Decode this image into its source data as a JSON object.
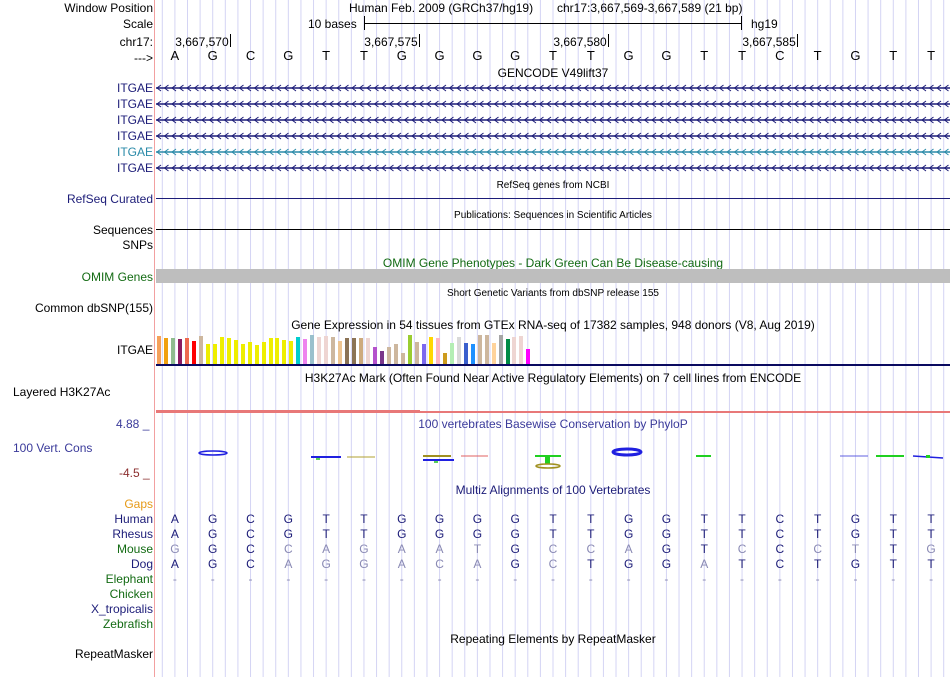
{
  "header": {
    "window_position_label": "Window Position",
    "assembly": "Human Feb. 2009 (GRCh37/hg19)",
    "position": "chr17:3,667,569-3,667,589 (21 bp)",
    "scale_label": "Scale",
    "scale_text": "10 bases",
    "scale_db": "hg19",
    "chrom_label": "chr17:",
    "ticks": [
      "3,667,570",
      "3,667,575",
      "3,667,580",
      "3,667,585"
    ],
    "strand_label": "--->"
  },
  "sequence": [
    "A",
    "G",
    "C",
    "G",
    "T",
    "T",
    "G",
    "G",
    "G",
    "G",
    "T",
    "T",
    "G",
    "G",
    "T",
    "T",
    "C",
    "T",
    "G",
    "T",
    "T"
  ],
  "gencode": {
    "title": "GENCODE V49lift37",
    "transcripts": [
      {
        "label": "ITGAE",
        "color": "#1c1c78"
      },
      {
        "label": "ITGAE",
        "color": "#1c1c78"
      },
      {
        "label": "ITGAE",
        "color": "#1c1c78"
      },
      {
        "label": "ITGAE",
        "color": "#1c1c78"
      },
      {
        "label": "ITGAE",
        "color": "#2a8aa8"
      },
      {
        "label": "ITGAE",
        "color": "#1c1c78"
      }
    ]
  },
  "refseq": {
    "title": "RefSeq genes from NCBI",
    "label": "RefSeq Curated"
  },
  "publications": {
    "title": "Publications: Sequences in Scientific Articles",
    "label": "Sequences"
  },
  "snps": {
    "label": "SNPs"
  },
  "omim": {
    "title": "OMIM Gene Phenotypes - Dark Green Can Be Disease-causing",
    "label": "OMIM Genes"
  },
  "dbsnp": {
    "title": "Short Genetic Variants from dbSNP release 155",
    "label": "Common dbSNP(155)"
  },
  "gtex": {
    "title": "Gene Expression in 54 tissues from GTEx RNA-seq of 17382 samples, 948 donors (V8, Aug 2019)",
    "label": "ITGAE",
    "bars": [
      {
        "color": "#f5a05a",
        "value": 0.95
      },
      {
        "color": "#f0a010",
        "value": 0.9
      },
      {
        "color": "#8fbc8f",
        "value": 0.88
      },
      {
        "color": "#8b1c62",
        "value": 0.85
      },
      {
        "color": "#ee6a50",
        "value": 0.88
      },
      {
        "color": "#ff0000",
        "value": 0.8
      },
      {
        "color": "#cdb79e",
        "value": 0.97
      },
      {
        "color": "#eeee00",
        "value": 0.68
      },
      {
        "color": "#eeee00",
        "value": 0.68
      },
      {
        "color": "#eeee00",
        "value": 0.92
      },
      {
        "color": "#eeee00",
        "value": 0.88
      },
      {
        "color": "#eeee00",
        "value": 0.82
      },
      {
        "color": "#eeee00",
        "value": 0.7
      },
      {
        "color": "#eeee00",
        "value": 0.77
      },
      {
        "color": "#eeee00",
        "value": 0.65
      },
      {
        "color": "#eeee00",
        "value": 0.75
      },
      {
        "color": "#eeee00",
        "value": 0.88
      },
      {
        "color": "#eeee00",
        "value": 0.88
      },
      {
        "color": "#eeee00",
        "value": 0.82
      },
      {
        "color": "#eeee00",
        "value": 0.78
      },
      {
        "color": "#00cdcd",
        "value": 0.92
      },
      {
        "color": "#ee82ee",
        "value": 0.85
      },
      {
        "color": "#9ac0cd",
        "value": 1.0
      },
      {
        "color": "#eed5d2",
        "value": 0.92
      },
      {
        "color": "#eed5d2",
        "value": 0.97
      },
      {
        "color": "#cdb79e",
        "value": 0.92
      },
      {
        "color": "#eec591",
        "value": 0.8
      },
      {
        "color": "#8b7355",
        "value": 0.88
      },
      {
        "color": "#8b7355",
        "value": 0.88
      },
      {
        "color": "#cdaa7d",
        "value": 0.9
      },
      {
        "color": "#eed5d2",
        "value": 0.9
      },
      {
        "color": "#b452cd",
        "value": 0.6
      },
      {
        "color": "#7a378b",
        "value": 0.45
      },
      {
        "color": "#cdb79e",
        "value": 0.6
      },
      {
        "color": "#cdb79e",
        "value": 0.68
      },
      {
        "color": "#cdb79e",
        "value": 0.37
      },
      {
        "color": "#9acd32",
        "value": 1.0
      },
      {
        "color": "#cdb79e",
        "value": 0.75
      },
      {
        "color": "#7b68ee",
        "value": 0.7
      },
      {
        "color": "#ffd700",
        "value": 0.92
      },
      {
        "color": "#ffb6c1",
        "value": 0.88
      },
      {
        "color": "#cd9b1d",
        "value": 0.37
      },
      {
        "color": "#b4eeb4",
        "value": 0.73
      },
      {
        "color": "#d9d9d9",
        "value": 0.92
      },
      {
        "color": "#3a5fcd",
        "value": 0.73
      },
      {
        "color": "#1e90ff",
        "value": 0.7
      },
      {
        "color": "#cdb79e",
        "value": 1.0
      },
      {
        "color": "#cdb79e",
        "value": 1.0
      },
      {
        "color": "#ffd39b",
        "value": 0.73
      },
      {
        "color": "#a6a6a6",
        "value": 1.0
      },
      {
        "color": "#008b45",
        "value": 0.85
      },
      {
        "color": "#eed5d2",
        "value": 0.92
      },
      {
        "color": "#eed5d2",
        "value": 0.95
      },
      {
        "color": "#ff00ff",
        "value": 0.5
      }
    ]
  },
  "h3k27ac": {
    "title": "H3K27Ac Mark (Often Found Near Active Regulatory Elements) on 7 cell lines from ENCODE",
    "label": "Layered H3K27Ac"
  },
  "phylop": {
    "title": "100 vertebrates Basewise Conservation by PhyloP",
    "label": "100 Vert. Cons",
    "max": "4.88 _",
    "min": "-4.5 _"
  },
  "multiz": {
    "title": "Multiz Alignments of 100 Vertebrates",
    "gaps_label": "Gaps",
    "species": [
      {
        "name": "Human",
        "cls": "navy",
        "bases": [
          "A",
          "G",
          "C",
          "G",
          "T",
          "T",
          "G",
          "G",
          "G",
          "G",
          "T",
          "T",
          "G",
          "G",
          "T",
          "T",
          "C",
          "T",
          "G",
          "T",
          "T"
        ],
        "match": [
          1,
          1,
          1,
          1,
          1,
          1,
          1,
          1,
          1,
          1,
          1,
          1,
          1,
          1,
          1,
          1,
          1,
          1,
          1,
          1,
          1
        ]
      },
      {
        "name": "Rhesus",
        "cls": "navy",
        "bases": [
          "A",
          "G",
          "C",
          "G",
          "T",
          "T",
          "G",
          "G",
          "G",
          "G",
          "T",
          "T",
          "G",
          "G",
          "T",
          "T",
          "C",
          "T",
          "G",
          "T",
          "T"
        ],
        "match": [
          1,
          1,
          1,
          1,
          1,
          1,
          1,
          1,
          1,
          1,
          1,
          1,
          1,
          1,
          1,
          1,
          1,
          1,
          1,
          1,
          1
        ]
      },
      {
        "name": "Mouse",
        "cls": "green",
        "bases": [
          "G",
          "G",
          "C",
          "C",
          "A",
          "G",
          "A",
          "A",
          "T",
          "G",
          "C",
          "C",
          "A",
          "G",
          "T",
          "C",
          "C",
          "C",
          "T",
          "T",
          "G"
        ],
        "match": [
          0,
          1,
          1,
          0,
          0,
          0,
          0,
          0,
          0,
          1,
          0,
          0,
          0,
          1,
          1,
          0,
          1,
          0,
          0,
          1,
          0
        ]
      },
      {
        "name": "Dog",
        "cls": "navy",
        "bases": [
          "A",
          "G",
          "C",
          "A",
          "G",
          "G",
          "A",
          "C",
          "A",
          "G",
          "C",
          "T",
          "G",
          "G",
          "A",
          "T",
          "C",
          "T",
          "G",
          "T",
          "T"
        ],
        "match": [
          1,
          1,
          1,
          0,
          0,
          0,
          0,
          0,
          0,
          1,
          0,
          1,
          1,
          1,
          0,
          1,
          1,
          1,
          1,
          1,
          1
        ]
      },
      {
        "name": "Elephant",
        "cls": "green",
        "bases": [
          "-",
          "-",
          "-",
          "-",
          "-",
          "-",
          "-",
          "-",
          "-",
          "-",
          "-",
          "-",
          "-",
          "-",
          "-",
          "-",
          "-",
          "-",
          "-",
          "-",
          "-"
        ],
        "match": [
          0,
          0,
          0,
          0,
          0,
          0,
          0,
          0,
          0,
          0,
          0,
          0,
          0,
          0,
          0,
          0,
          0,
          0,
          0,
          0,
          0
        ]
      },
      {
        "name": "Chicken",
        "cls": "green",
        "bases": [],
        "match": []
      },
      {
        "name": "X_tropicalis",
        "cls": "navy",
        "bases": [],
        "match": []
      },
      {
        "name": "Zebrafish",
        "cls": "green",
        "bases": [],
        "match": []
      }
    ]
  },
  "repeatmasker": {
    "title": "Repeating Elements by RepeatMasker",
    "label": "RepeatMasker"
  }
}
